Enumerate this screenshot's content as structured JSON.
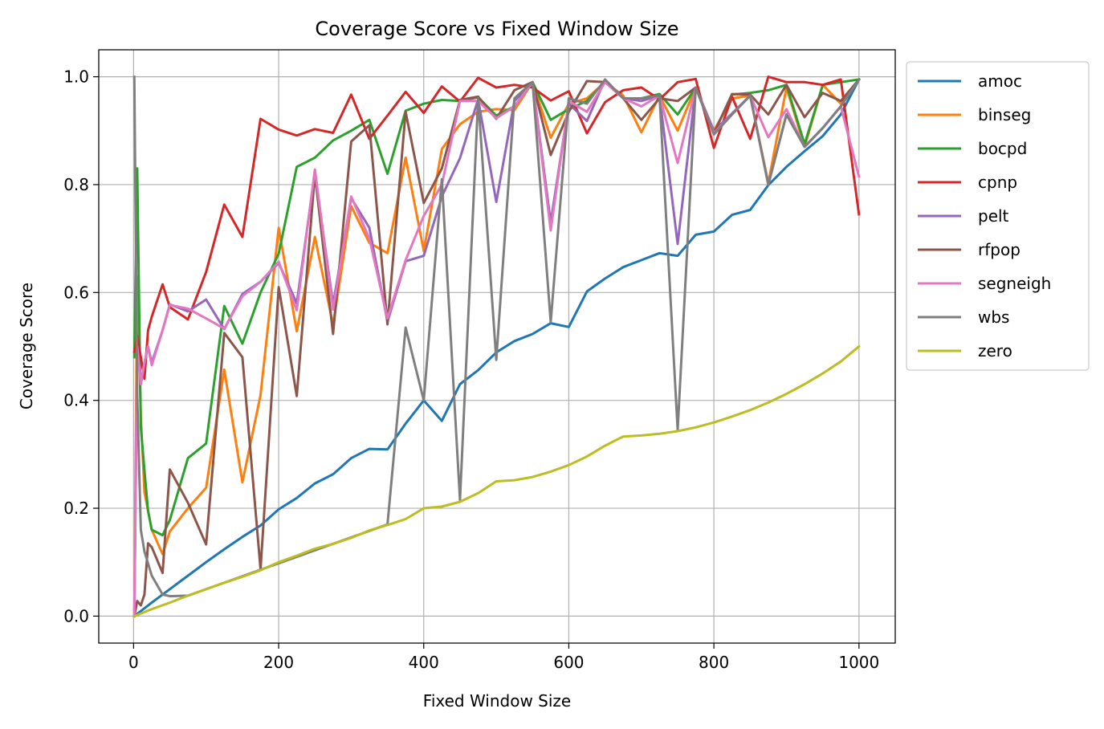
{
  "chart_data": {
    "type": "line",
    "title": "Coverage Score vs Fixed Window Size",
    "xlabel": "Fixed Window Size",
    "ylabel": "Coverage Score",
    "xlim": [
      -48,
      1050
    ],
    "ylim": [
      -0.05,
      1.05
    ],
    "xticks": [
      0,
      200,
      400,
      600,
      800,
      1000
    ],
    "yticks": [
      0.0,
      0.2,
      0.4,
      0.6,
      0.8,
      1.0
    ],
    "ytick_labels": [
      "0.0",
      "0.2",
      "0.4",
      "0.6",
      "0.8",
      "1.0"
    ],
    "grid": true,
    "legend_placement": "outside-right-top",
    "series": [
      {
        "name": "amoc",
        "color": "#1f77b4",
        "x": [
          1,
          25,
          50,
          75,
          100,
          125,
          150,
          175,
          200,
          225,
          250,
          275,
          300,
          325,
          350,
          375,
          400,
          425,
          450,
          475,
          500,
          525,
          550,
          575,
          600,
          625,
          650,
          675,
          700,
          725,
          750,
          775,
          800,
          825,
          850,
          875,
          900,
          925,
          950,
          975,
          1000
        ],
        "y": [
          0.0,
          0.025,
          0.05,
          0.075,
          0.1,
          0.124,
          0.147,
          0.168,
          0.198,
          0.219,
          0.246,
          0.263,
          0.293,
          0.31,
          0.309,
          0.357,
          0.4,
          0.362,
          0.43,
          0.456,
          0.489,
          0.51,
          0.523,
          0.543,
          0.536,
          0.602,
          0.626,
          0.647,
          0.66,
          0.673,
          0.668,
          0.707,
          0.713,
          0.744,
          0.753,
          0.799,
          0.833,
          0.862,
          0.89,
          0.93,
          0.995
        ]
      },
      {
        "name": "binseg",
        "color": "#ff7f0e",
        "x": [
          1,
          5,
          10,
          15,
          25,
          40,
          50,
          75,
          100,
          125,
          150,
          175,
          200,
          225,
          250,
          275,
          300,
          325,
          350,
          375,
          400,
          425,
          450,
          475,
          500,
          525,
          550,
          575,
          600,
          625,
          650,
          675,
          700,
          725,
          750,
          775,
          800,
          825,
          850,
          875,
          900,
          925,
          950,
          975,
          1000
        ],
        "y": [
          0.0,
          0.63,
          0.37,
          0.23,
          0.16,
          0.115,
          0.157,
          0.2,
          0.238,
          0.457,
          0.248,
          0.41,
          0.72,
          0.528,
          0.703,
          0.54,
          0.76,
          0.692,
          0.673,
          0.85,
          0.677,
          0.866,
          0.912,
          0.935,
          0.94,
          0.938,
          0.99,
          0.887,
          0.95,
          0.96,
          0.99,
          0.965,
          0.897,
          0.965,
          0.9,
          0.98,
          0.9,
          0.96,
          0.965,
          0.803,
          0.98,
          0.87,
          0.985,
          0.95,
          0.995
        ]
      },
      {
        "name": "bocpd",
        "color": "#2ca02c",
        "x": [
          1,
          5,
          10,
          15,
          20,
          25,
          40,
          50,
          75,
          100,
          125,
          150,
          175,
          200,
          225,
          250,
          275,
          300,
          325,
          350,
          375,
          400,
          425,
          450,
          475,
          500,
          525,
          550,
          575,
          600,
          625,
          650,
          675,
          700,
          725,
          750,
          775,
          800,
          825,
          850,
          875,
          900,
          925,
          950,
          975,
          1000
        ],
        "y": [
          0.48,
          0.83,
          0.35,
          0.27,
          0.195,
          0.16,
          0.15,
          0.178,
          0.293,
          0.32,
          0.575,
          0.505,
          0.6,
          0.672,
          0.833,
          0.85,
          0.882,
          0.9,
          0.92,
          0.82,
          0.937,
          0.95,
          0.957,
          0.955,
          0.962,
          0.928,
          0.945,
          0.99,
          0.92,
          0.94,
          0.955,
          0.992,
          0.96,
          0.96,
          0.968,
          0.93,
          0.98,
          0.895,
          0.967,
          0.97,
          0.975,
          0.985,
          0.875,
          0.985,
          0.99,
          0.995
        ]
      },
      {
        "name": "cpnp",
        "color": "#d62728",
        "x": [
          1,
          5,
          10,
          15,
          20,
          25,
          40,
          50,
          75,
          100,
          125,
          150,
          175,
          200,
          225,
          250,
          275,
          300,
          325,
          350,
          375,
          400,
          425,
          450,
          475,
          500,
          525,
          550,
          575,
          600,
          625,
          650,
          675,
          700,
          725,
          750,
          775,
          800,
          825,
          850,
          875,
          900,
          925,
          950,
          975,
          1000
        ],
        "y": [
          0.49,
          0.52,
          0.48,
          0.44,
          0.53,
          0.555,
          0.615,
          0.573,
          0.55,
          0.638,
          0.763,
          0.703,
          0.922,
          0.902,
          0.891,
          0.903,
          0.896,
          0.967,
          0.885,
          0.928,
          0.972,
          0.933,
          0.982,
          0.954,
          0.998,
          0.98,
          0.985,
          0.98,
          0.956,
          0.973,
          0.895,
          0.953,
          0.975,
          0.98,
          0.958,
          0.99,
          0.996,
          0.868,
          0.963,
          0.885,
          1.0,
          0.99,
          0.99,
          0.985,
          0.995,
          0.745
        ]
      },
      {
        "name": "pelt",
        "color": "#9467bd",
        "x": [
          1,
          5,
          10,
          15,
          20,
          25,
          40,
          50,
          75,
          100,
          125,
          150,
          175,
          200,
          225,
          250,
          275,
          300,
          325,
          350,
          375,
          400,
          425,
          450,
          475,
          500,
          525,
          550,
          575,
          600,
          625,
          650,
          675,
          700,
          725,
          750,
          775,
          800,
          825,
          850,
          875,
          900,
          925,
          950,
          975,
          1000
        ],
        "y": [
          0.0,
          0.5,
          0.43,
          0.47,
          0.5,
          0.47,
          0.53,
          0.578,
          0.565,
          0.587,
          0.532,
          0.597,
          0.62,
          0.655,
          0.58,
          0.822,
          0.578,
          0.775,
          0.72,
          0.546,
          0.658,
          0.668,
          0.778,
          0.849,
          0.958,
          0.768,
          0.955,
          0.99,
          0.73,
          0.95,
          0.918,
          0.995,
          0.96,
          0.955,
          0.965,
          0.69,
          0.98,
          0.9,
          0.932,
          0.965,
          0.8,
          0.93,
          0.87,
          0.905,
          0.945,
          0.995
        ]
      },
      {
        "name": "rfpop",
        "color": "#8c564b",
        "x": [
          1,
          5,
          10,
          15,
          20,
          25,
          40,
          50,
          75,
          100,
          125,
          150,
          175,
          200,
          225,
          250,
          275,
          300,
          325,
          350,
          375,
          400,
          425,
          450,
          475,
          500,
          525,
          550,
          575,
          600,
          625,
          650,
          675,
          700,
          725,
          750,
          775,
          800,
          825,
          850,
          875,
          900,
          925,
          950,
          975,
          1000
        ],
        "y": [
          0.0,
          0.028,
          0.02,
          0.04,
          0.135,
          0.128,
          0.08,
          0.272,
          0.21,
          0.133,
          0.525,
          0.48,
          0.087,
          0.61,
          0.408,
          0.82,
          0.523,
          0.88,
          0.91,
          0.541,
          0.935,
          0.766,
          0.83,
          0.957,
          0.963,
          0.922,
          0.975,
          0.99,
          0.855,
          0.935,
          0.992,
          0.99,
          0.96,
          0.92,
          0.96,
          0.955,
          0.98,
          0.895,
          0.968,
          0.967,
          0.93,
          0.985,
          0.925,
          0.97,
          0.955,
          0.995
        ]
      },
      {
        "name": "segneigh",
        "color": "#e377c2",
        "x": [
          1,
          5,
          10,
          15,
          20,
          25,
          40,
          50,
          75,
          100,
          125,
          150,
          175,
          200,
          225,
          250,
          275,
          300,
          325,
          350,
          375,
          400,
          425,
          450,
          475,
          500,
          525,
          550,
          575,
          600,
          625,
          650,
          675,
          700,
          725,
          750,
          775,
          800,
          825,
          850,
          875,
          900,
          925,
          950,
          975,
          1000
        ],
        "y": [
          0.0,
          0.5,
          0.43,
          0.47,
          0.5,
          0.465,
          0.53,
          0.577,
          0.57,
          0.552,
          0.533,
          0.593,
          0.62,
          0.657,
          0.567,
          0.828,
          0.568,
          0.778,
          0.7,
          0.552,
          0.66,
          0.742,
          0.8,
          0.955,
          0.955,
          0.923,
          0.945,
          0.99,
          0.715,
          0.955,
          0.935,
          0.99,
          0.96,
          0.945,
          0.965,
          0.84,
          0.98,
          0.895,
          0.93,
          0.965,
          0.888,
          0.94,
          0.87,
          0.905,
          0.945,
          0.815
        ]
      },
      {
        "name": "wbs",
        "color": "#7f7f7f",
        "x": [
          1,
          5,
          10,
          15,
          25,
          40,
          50,
          75,
          350,
          375,
          400,
          425,
          450,
          475,
          500,
          525,
          550,
          575,
          600,
          625,
          650,
          675,
          700,
          725,
          750,
          775,
          800,
          825,
          850,
          875,
          900,
          925,
          950,
          975,
          1000
        ],
        "y": [
          1.0,
          0.41,
          0.16,
          0.12,
          0.075,
          0.04,
          0.037,
          0.038,
          0.17,
          0.535,
          0.4,
          0.81,
          0.215,
          0.96,
          0.475,
          0.96,
          0.99,
          0.545,
          0.96,
          0.95,
          0.995,
          0.96,
          0.96,
          0.965,
          0.345,
          0.98,
          0.893,
          0.93,
          0.965,
          0.8,
          0.93,
          0.87,
          0.905,
          0.945,
          0.995
        ]
      },
      {
        "name": "zero",
        "color": "#bcbd22",
        "x": [
          1,
          25,
          50,
          75,
          100,
          125,
          150,
          175,
          200,
          225,
          250,
          275,
          300,
          325,
          350,
          375,
          400,
          425,
          450,
          475,
          500,
          525,
          550,
          575,
          600,
          625,
          650,
          675,
          700,
          725,
          750,
          775,
          800,
          825,
          850,
          875,
          900,
          925,
          950,
          975,
          1000
        ],
        "y": [
          0.0,
          0.013,
          0.025,
          0.038,
          0.05,
          0.062,
          0.073,
          0.085,
          0.1,
          0.112,
          0.125,
          0.134,
          0.145,
          0.159,
          0.169,
          0.18,
          0.2,
          0.203,
          0.212,
          0.228,
          0.25,
          0.252,
          0.258,
          0.268,
          0.28,
          0.296,
          0.316,
          0.333,
          0.335,
          0.338,
          0.343,
          0.35,
          0.359,
          0.37,
          0.382,
          0.396,
          0.412,
          0.43,
          0.45,
          0.472,
          0.5
        ]
      }
    ]
  }
}
